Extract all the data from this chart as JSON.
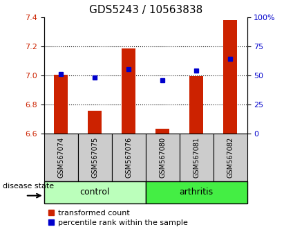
{
  "title": "GDS5243 / 10563838",
  "samples": [
    "GSM567074",
    "GSM567075",
    "GSM567076",
    "GSM567080",
    "GSM567081",
    "GSM567082"
  ],
  "bar_bottom": 6.6,
  "bar_tops": [
    7.005,
    6.755,
    7.185,
    6.635,
    6.995,
    7.38
  ],
  "percentile_values": [
    51,
    48,
    55,
    46,
    54,
    64
  ],
  "ylim": [
    6.6,
    7.4
  ],
  "y2lim": [
    0,
    100
  ],
  "yticks": [
    6.6,
    6.8,
    7.0,
    7.2,
    7.4
  ],
  "y2ticks": [
    0,
    25,
    50,
    75,
    100
  ],
  "bar_color": "#cc2200",
  "dot_color": "#0000cc",
  "control_color": "#bbffbb",
  "arthritis_color": "#44ee44",
  "sample_box_color": "#cccccc",
  "legend_bar_label": "transformed count",
  "legend_dot_label": "percentile rank within the sample",
  "disease_state_label": "disease state",
  "bar_width": 0.4,
  "title_fontsize": 11,
  "tick_fontsize": 8,
  "sample_fontsize": 7,
  "group_fontsize": 9,
  "legend_fontsize": 8
}
